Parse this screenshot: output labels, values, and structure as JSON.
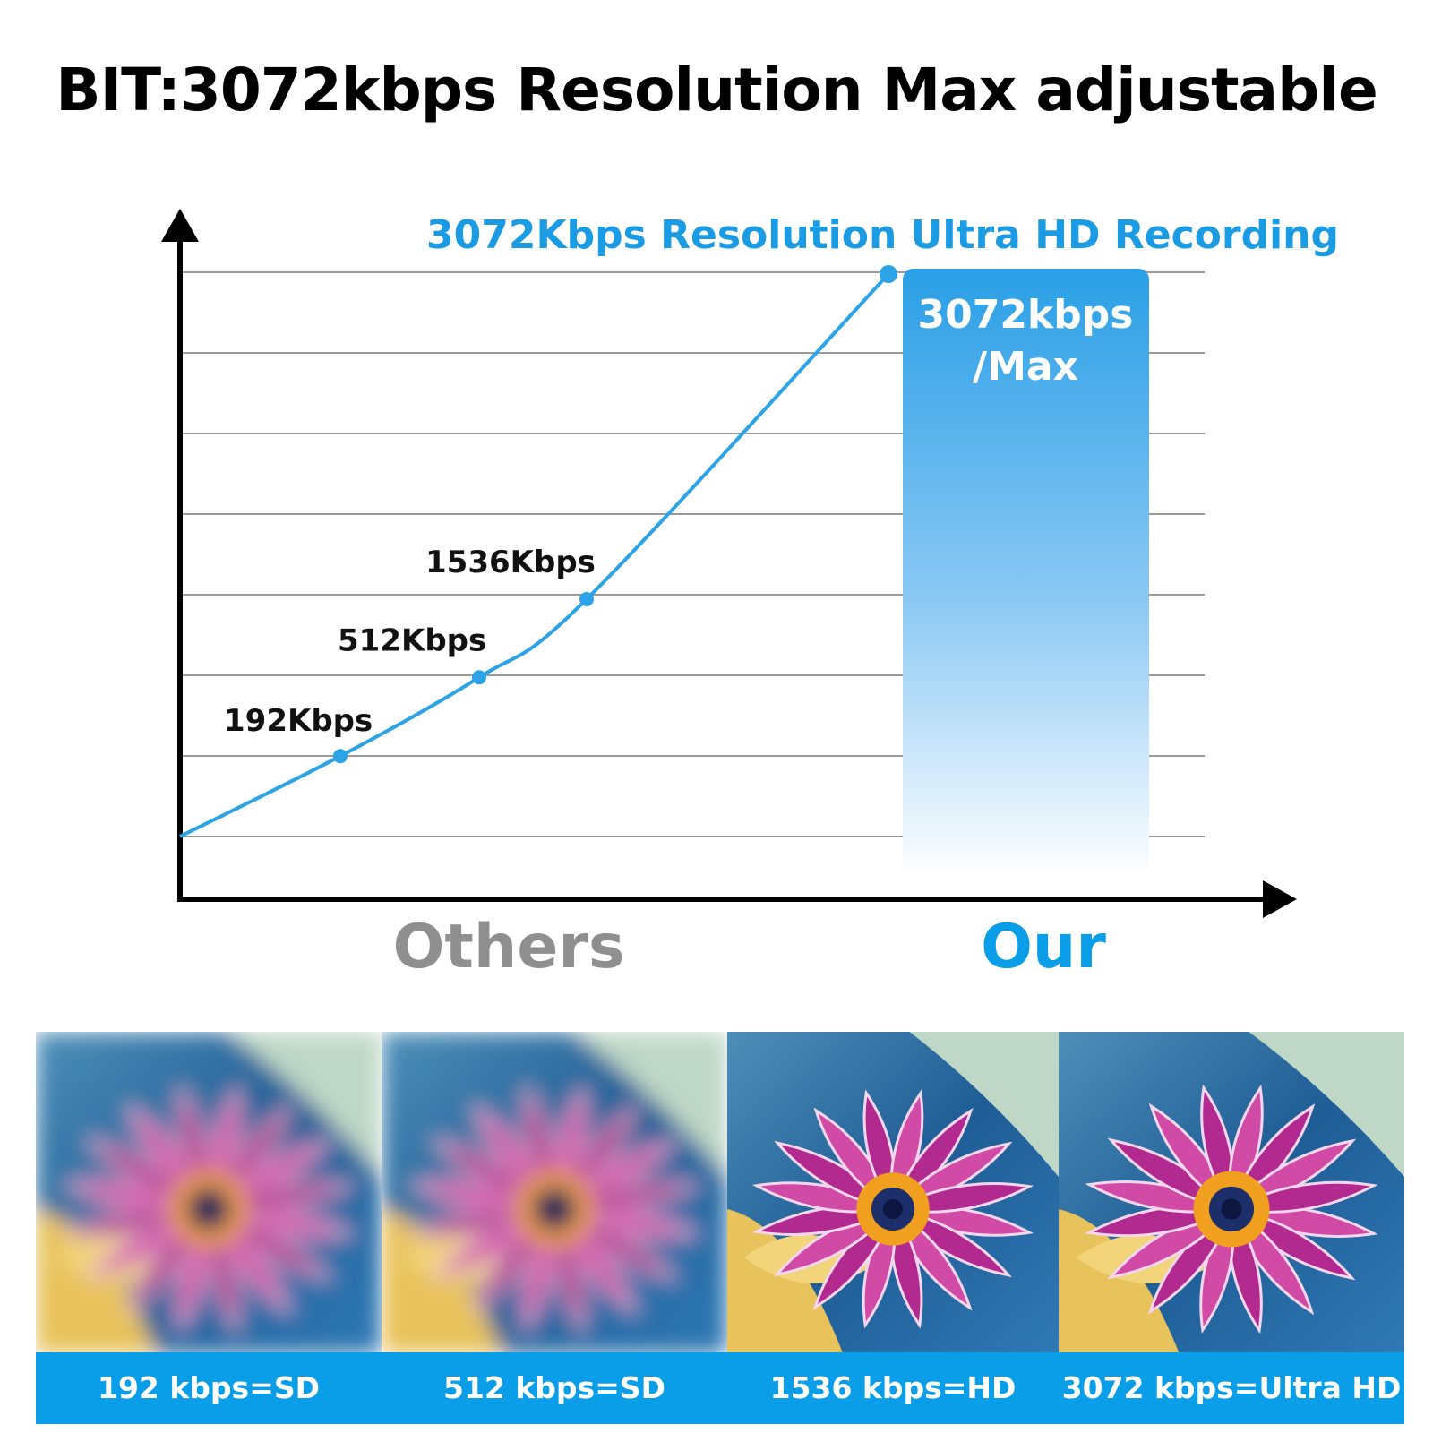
{
  "headline": "BIT:3072kbps Resolution Max adjustable",
  "chart_data": {
    "type": "line",
    "title": "3072Kbps Resolution Ultra HD Recording",
    "x": [
      "",
      "",
      "",
      "",
      ""
    ],
    "series": [
      {
        "values": [
          0,
          192,
          512,
          1536,
          3072
        ],
        "point_labels": [
          "",
          "192Kbps",
          "512Kbps",
          "1536Kbps",
          ""
        ]
      }
    ],
    "highlight_bar": {
      "value": 3072,
      "label_line1": "3072kbps",
      "label_line2": "/Max"
    },
    "group_labels": {
      "others": "Others",
      "ours": "Our"
    },
    "gridlines": 8,
    "grid": true,
    "colors": {
      "line": "#2ba3e6",
      "title": "#1a9be3",
      "bar_top": "#2a9fe6",
      "bar_bottom": "#ffffff",
      "others": "#8f8f8f",
      "ours": "#0a9ee8"
    }
  },
  "samples": [
    {
      "caption": "192 kbps=SD",
      "quality": "blurred"
    },
    {
      "caption": "512 kbps=SD",
      "quality": "blurred"
    },
    {
      "caption": "1536 kbps=HD",
      "quality": "sharp"
    },
    {
      "caption": "3072 kbps=Ultra HD",
      "quality": "sharp"
    }
  ],
  "footer_color": "#0a9ee8"
}
